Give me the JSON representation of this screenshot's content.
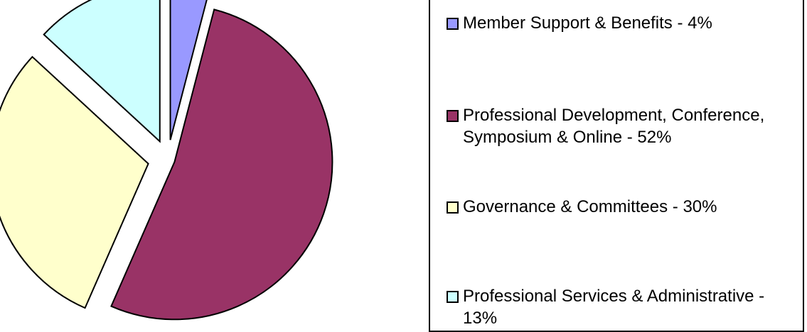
{
  "chart_data": {
    "type": "pie",
    "title": "",
    "slices": [
      {
        "label": "Member Support & Benefits - 4%",
        "value": 4,
        "color": "#9999FF"
      },
      {
        "label": "Professional Development, Conference, Symposium & Online - 52%",
        "value": 52,
        "color": "#993366"
      },
      {
        "label": "Governance & Committees - 30%",
        "value": 30,
        "color": "#FFFFCC"
      },
      {
        "label": "Professional Services & Administrative - 13%",
        "value": 13,
        "color": "#CCFFFF"
      }
    ],
    "exploded": true,
    "legend_position": "right"
  }
}
